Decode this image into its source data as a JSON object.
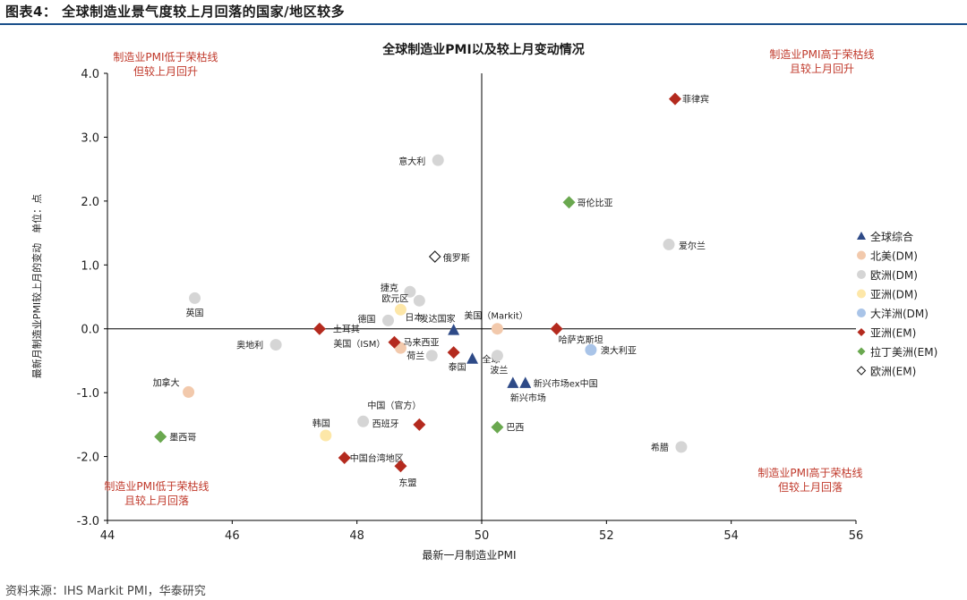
{
  "figure": {
    "title": "图表4： 全球制造业景气度较上月回落的国家/地区较多",
    "source": "资料来源：IHS Markit PMI，华泰研究"
  },
  "chart_data": {
    "type": "scatter",
    "title": "全球制造业PMI以及较上月变动情况",
    "xlabel": "最新一月制造业PMI",
    "ylabel": "最新月制造业PMI较上月的变动　单位：点",
    "xlim": [
      44,
      56
    ],
    "ylim": [
      -3.0,
      4.0
    ],
    "x_ref": 50,
    "y_ref": 0,
    "xticks": [
      "44",
      "46",
      "48",
      "50",
      "52",
      "54",
      "56"
    ],
    "yticks": [
      "4.0",
      "3.0",
      "2.0",
      "1.0",
      "0.0",
      "-1.0",
      "-2.0",
      "-3.0"
    ],
    "grid": false,
    "legend_position": "right",
    "quadrant_labels": [
      {
        "pos": "top-left",
        "lines": [
          "制造业PMI低于荣枯线",
          "但较上月回升"
        ]
      },
      {
        "pos": "top-right",
        "lines": [
          "制造业PMI高于荣枯线",
          "且较上月回升"
        ]
      },
      {
        "pos": "bottom-left",
        "lines": [
          "制造业PMI低于荣枯线",
          "且较上月回落"
        ]
      },
      {
        "pos": "bottom-right",
        "lines": [
          "制造业PMI高于荣枯线",
          "但较上月回落"
        ]
      }
    ],
    "quadrant_color": "#c0392b",
    "series": [
      {
        "name": "全球综合",
        "marker": "triangle",
        "color": "#2e4a87",
        "points": [
          {
            "label": "发达国家",
            "x": 49.55,
            "y": -0.02
          },
          {
            "label": "全球",
            "x": 49.85,
            "y": -0.47
          },
          {
            "label": "新兴市场ex中国",
            "x": 50.7,
            "y": -0.85
          },
          {
            "label": "新兴市场",
            "x": 50.5,
            "y": -0.85
          }
        ]
      },
      {
        "name": "北美(DM)",
        "marker": "circle",
        "color": "#f2c9ac",
        "points": [
          {
            "label": "美国（Markit）",
            "x": 50.25,
            "y": 0.0
          },
          {
            "label": "美国（ISM）",
            "x": 48.7,
            "y": -0.3
          },
          {
            "label": "加拿大",
            "x": 45.3,
            "y": -0.99
          }
        ]
      },
      {
        "name": "欧洲(DM)",
        "marker": "circle",
        "color": "#d5d5d5",
        "points": [
          {
            "label": "意大利",
            "x": 49.3,
            "y": 2.64
          },
          {
            "label": "爱尔兰",
            "x": 53.0,
            "y": 1.32
          },
          {
            "label": "英国",
            "x": 45.4,
            "y": 0.48
          },
          {
            "label": "捷克",
            "x": 48.85,
            "y": 0.58
          },
          {
            "label": "欧元区",
            "x": 49.0,
            "y": 0.44
          },
          {
            "label": "德国",
            "x": 48.5,
            "y": 0.13
          },
          {
            "label": "奥地利",
            "x": 46.7,
            "y": -0.25
          },
          {
            "label": "荷兰",
            "x": 49.2,
            "y": -0.42
          },
          {
            "label": "波兰",
            "x": 50.25,
            "y": -0.42
          },
          {
            "label": "西班牙",
            "x": 48.1,
            "y": -1.45
          },
          {
            "label": "希腊",
            "x": 53.2,
            "y": -1.85
          }
        ]
      },
      {
        "name": "亚洲(DM)",
        "marker": "circle",
        "color": "#fde7a8",
        "points": [
          {
            "label": "日本",
            "x": 48.7,
            "y": 0.3
          },
          {
            "label": "韩国",
            "x": 47.5,
            "y": -1.67
          }
        ]
      },
      {
        "name": "大洋洲(DM)",
        "marker": "circle",
        "color": "#a9c4e8",
        "points": [
          {
            "label": "澳大利亚",
            "x": 51.75,
            "y": -0.33
          }
        ]
      },
      {
        "name": "亚洲(EM)",
        "marker": "diamond",
        "color": "#b42a1e",
        "points": [
          {
            "label": "菲律宾",
            "x": 53.1,
            "y": 3.6
          },
          {
            "label": "土耳其",
            "x": 47.4,
            "y": 0.0
          },
          {
            "label": "哈萨克斯坦",
            "x": 51.2,
            "y": 0.0
          },
          {
            "label": "马来西亚",
            "x": 48.6,
            "y": -0.21
          },
          {
            "label": "泰国",
            "x": 49.55,
            "y": -0.37
          },
          {
            "label": "中国（官方）",
            "x": 49.0,
            "y": -1.5
          },
          {
            "label": "中国台湾地区",
            "x": 47.8,
            "y": -2.02
          },
          {
            "label": "东盟",
            "x": 48.7,
            "y": -2.15
          }
        ]
      },
      {
        "name": "拉丁美洲(EM)",
        "marker": "diamond",
        "color": "#6aa84f",
        "points": [
          {
            "label": "哥伦比亚",
            "x": 51.4,
            "y": 1.98
          },
          {
            "label": "巴西",
            "x": 50.25,
            "y": -1.54
          },
          {
            "label": "墨西哥",
            "x": 44.85,
            "y": -1.69
          }
        ]
      },
      {
        "name": "欧洲(EM)",
        "marker": "diamond-open",
        "color": "#222222",
        "points": [
          {
            "label": "俄罗斯",
            "x": 49.25,
            "y": 1.13
          }
        ]
      }
    ]
  }
}
